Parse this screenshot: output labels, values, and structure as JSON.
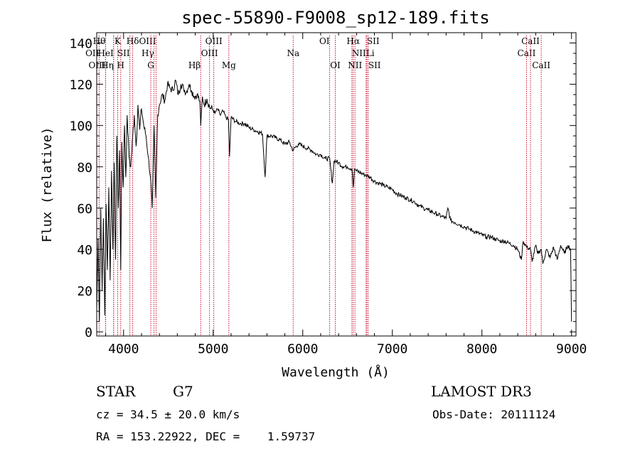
{
  "chart_data": {
    "type": "line",
    "title": "spec-55890-F9008_sp12-189.fits",
    "xlabel": "Wavelength (Å)",
    "ylabel": "Flux (relative)",
    "xlim": [
      3700,
      9050
    ],
    "ylim": [
      -2,
      145
    ],
    "xticks": [
      {
        "value": 4000,
        "label": "4000"
      },
      {
        "value": 5000,
        "label": "5000"
      },
      {
        "value": 6000,
        "label": "6000"
      },
      {
        "value": 7000,
        "label": "7000"
      },
      {
        "value": 8000,
        "label": "8000"
      },
      {
        "value": 9000,
        "label": "9000"
      }
    ],
    "yticks": [
      {
        "value": 0,
        "label": "0"
      },
      {
        "value": 20,
        "label": "20"
      },
      {
        "value": 40,
        "label": "40"
      },
      {
        "value": 60,
        "label": "60"
      },
      {
        "value": 80,
        "label": "80"
      },
      {
        "value": 100,
        "label": "100"
      },
      {
        "value": 120,
        "label": "120"
      },
      {
        "value": 140,
        "label": "140"
      }
    ],
    "series": [
      {
        "name": "flux",
        "x": [
          3700,
          3715,
          3730,
          3745,
          3760,
          3775,
          3790,
          3805,
          3820,
          3835,
          3850,
          3865,
          3880,
          3895,
          3910,
          3925,
          3940,
          3955,
          3968,
          3980,
          3995,
          4010,
          4025,
          4040,
          4060,
          4080,
          4102,
          4120,
          4140,
          4160,
          4180,
          4200,
          4225,
          4250,
          4275,
          4300,
          4320,
          4340,
          4360,
          4380,
          4400,
          4430,
          4460,
          4490,
          4520,
          4550,
          4580,
          4610,
          4640,
          4670,
          4700,
          4730,
          4760,
          4790,
          4820,
          4850,
          4861,
          4880,
          4900,
          4930,
          4960,
          4990,
          5020,
          5050,
          5080,
          5110,
          5140,
          5170,
          5183,
          5200,
          5250,
          5300,
          5350,
          5400,
          5450,
          5500,
          5550,
          5580,
          5600,
          5650,
          5700,
          5750,
          5800,
          5850,
          5890,
          5950,
          6000,
          6050,
          6100,
          6150,
          6200,
          6250,
          6300,
          6330,
          6350,
          6400,
          6450,
          6500,
          6550,
          6563,
          6580,
          6600,
          6650,
          6700,
          6750,
          6800,
          6850,
          6900,
          6950,
          7000,
          7050,
          7100,
          7150,
          7200,
          7250,
          7300,
          7350,
          7400,
          7450,
          7500,
          7550,
          7600,
          7620,
          7650,
          7700,
          7750,
          7800,
          7850,
          7900,
          7950,
          8000,
          8050,
          8100,
          8150,
          8200,
          8250,
          8300,
          8350,
          8400,
          8440,
          8460,
          8500,
          8542,
          8560,
          8600,
          8620,
          8662,
          8680,
          8720,
          8760,
          8800,
          8840,
          8880,
          8920,
          8960,
          8990,
          9000
        ],
        "y": [
          10,
          45,
          5,
          60,
          20,
          55,
          8,
          62,
          30,
          70,
          25,
          78,
          40,
          82,
          35,
          95,
          60,
          88,
          30,
          92,
          70,
          100,
          75,
          105,
          85,
          80,
          95,
          105,
          90,
          110,
          98,
          108,
          100,
          95,
          85,
          75,
          60,
          100,
          65,
          105,
          110,
          115,
          112,
          120,
          118,
          117,
          122,
          115,
          120,
          118,
          116,
          120,
          117,
          114,
          115,
          112,
          100,
          114,
          110,
          113,
          109,
          108,
          106,
          108,
          105,
          107,
          104,
          103,
          85,
          104,
          102,
          101,
          101,
          99,
          98,
          97,
          96,
          75,
          95,
          95,
          94,
          93,
          91,
          92,
          88,
          91,
          90,
          89,
          88,
          86,
          86,
          84,
          84,
          72,
          83,
          82,
          80,
          80,
          79,
          70,
          79,
          78,
          77,
          76,
          75,
          73,
          72,
          71,
          70,
          69,
          67,
          66,
          65,
          64,
          63,
          61,
          60,
          59,
          58,
          57,
          56,
          55,
          60,
          54,
          53,
          52,
          51,
          50,
          49,
          48,
          47,
          46,
          46,
          45,
          44,
          44,
          43,
          42,
          40,
          35,
          44,
          41,
          40,
          34,
          42,
          38,
          40,
          33,
          40,
          36,
          41,
          35,
          42,
          38,
          42,
          40,
          5
        ]
      }
    ],
    "line_markers": [
      {
        "label": "OII",
        "x": 3727,
        "row": 2,
        "align": "right"
      },
      {
        "label": "Hθ",
        "x": 3798,
        "row": 1,
        "align": "right"
      },
      {
        "label": "OIII",
        "x": 3800,
        "row": 3,
        "align": "right"
      },
      {
        "label": "HeI",
        "x": 3889,
        "row": 2,
        "align": "right"
      },
      {
        "label": "Hη",
        "x": 3889,
        "row": 3,
        "align": "right"
      },
      {
        "label": "K",
        "x": 3934,
        "row": 1,
        "align": "middle"
      },
      {
        "label": "SII",
        "x": 4070,
        "row": 2,
        "align": "right"
      },
      {
        "label": "H",
        "x": 3968,
        "row": 3,
        "align": "middle"
      },
      {
        "label": "Hδ",
        "x": 4102,
        "row": 1,
        "align": "middle"
      },
      {
        "label": "OIII",
        "x": 4363,
        "row": 1,
        "align": "right"
      },
      {
        "label": "Hγ",
        "x": 4340,
        "row": 2,
        "align": "right"
      },
      {
        "label": "G",
        "x": 4304,
        "row": 3,
        "align": "middle"
      },
      {
        "label": "Hβ",
        "x": 4861,
        "row": 3,
        "align": "right"
      },
      {
        "label": "OIII",
        "x": 4959,
        "row": 2,
        "align": "middle"
      },
      {
        "label": "OIII",
        "x": 5007,
        "row": 1,
        "align": "middle"
      },
      {
        "label": "Mg",
        "x": 5175,
        "row": 3,
        "align": "middle"
      },
      {
        "label": "Na",
        "x": 5893,
        "row": 2,
        "align": "middle"
      },
      {
        "label": "OI",
        "x": 6300,
        "row": 1,
        "align": "right"
      },
      {
        "label": "OI",
        "x": 6363,
        "row": 3,
        "align": "middle"
      },
      {
        "label": "NII",
        "x": 6548,
        "row": 2,
        "align": "left"
      },
      {
        "label": "Hα",
        "x": 6563,
        "row": 1,
        "align": "middle"
      },
      {
        "label": "NII",
        "x": 6583,
        "row": 3,
        "align": "middle"
      },
      {
        "label": "SII",
        "x": 6716,
        "row": 1,
        "align": "left"
      },
      {
        "label": "Li",
        "x": 6707,
        "row": 2,
        "align": "left"
      },
      {
        "label": "SII",
        "x": 6731,
        "row": 3,
        "align": "left"
      },
      {
        "label": "CaII",
        "x": 8498,
        "row": 2,
        "align": "middle"
      },
      {
        "label": "CaII",
        "x": 8542,
        "row": 1,
        "align": "middle"
      },
      {
        "label": "CaII",
        "x": 8662,
        "row": 3,
        "align": "middle"
      }
    ]
  },
  "footer": {
    "object_class": "STAR",
    "subclass": "G7",
    "survey": "LAMOST DR3",
    "redshift": "cz = 34.5 ± 20.0 km/s",
    "obs_date": "Obs-Date: 20111124",
    "coords": "RA = 153.22922, DEC =    1.59737"
  }
}
